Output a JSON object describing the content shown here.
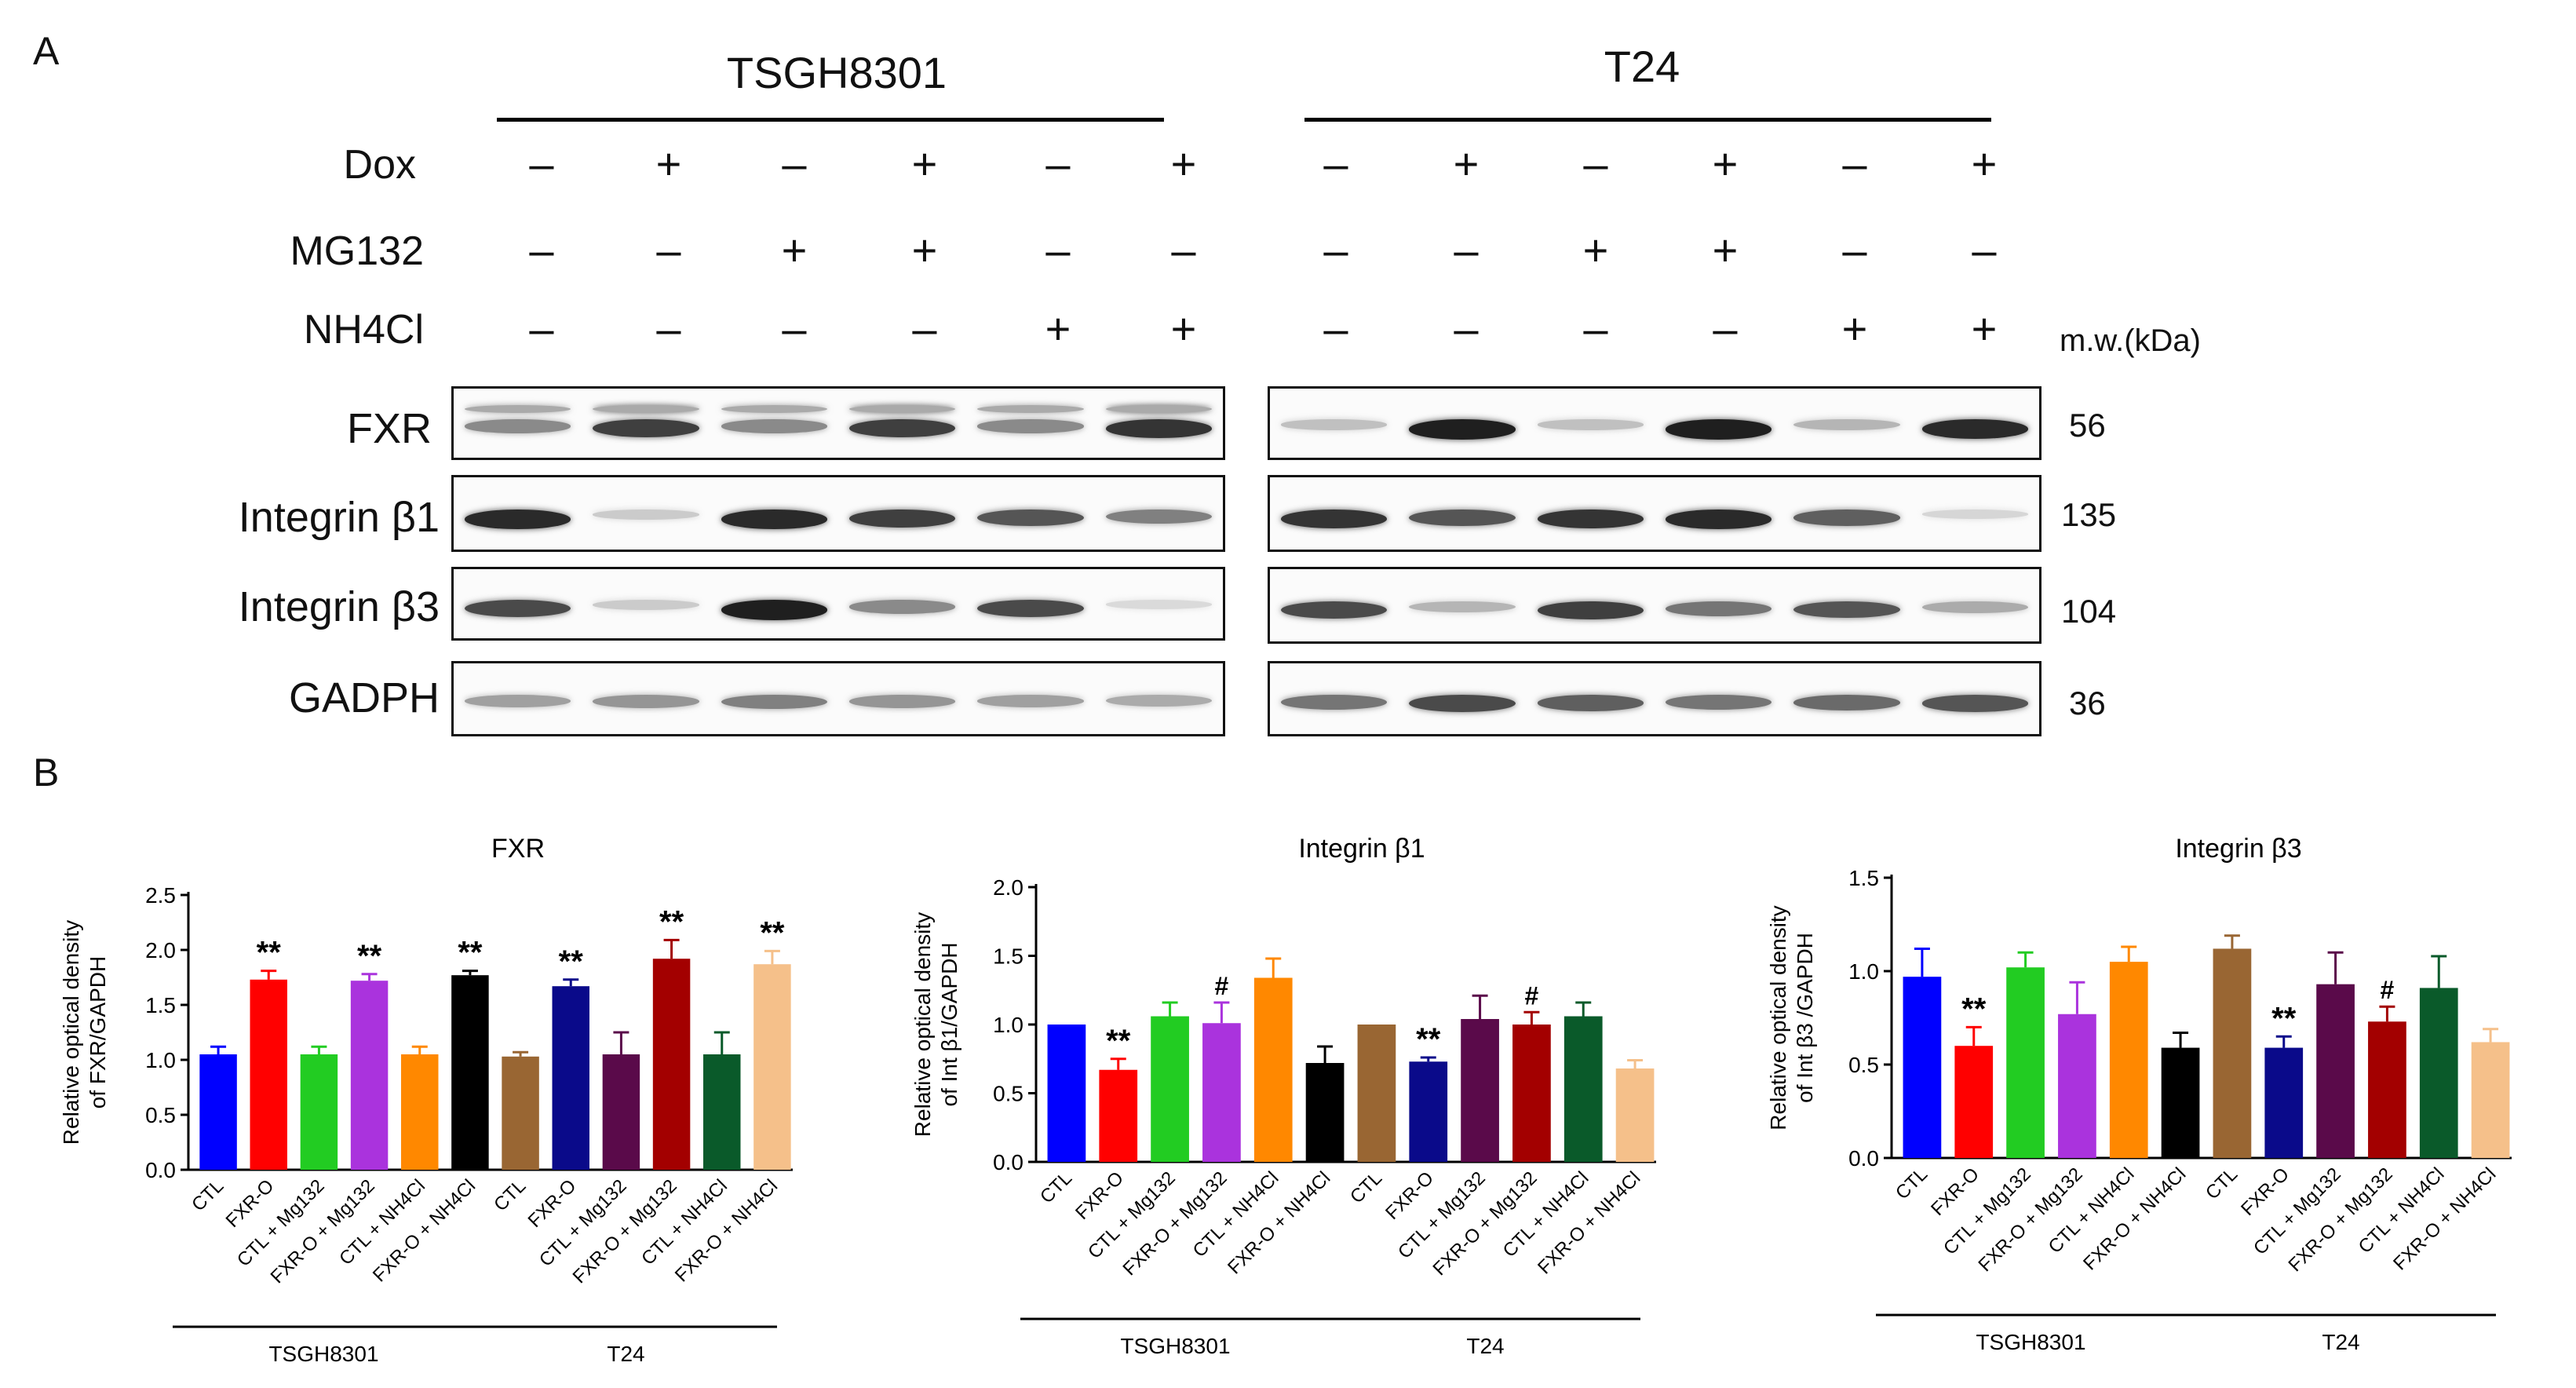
{
  "panelA": {
    "letter": "A",
    "cell_lines": [
      "TSGH8301",
      "T24"
    ],
    "treatments": [
      {
        "label": "Dox",
        "signs": [
          "–",
          "+",
          "–",
          "+",
          "–",
          "+"
        ]
      },
      {
        "label": "MG132",
        "signs": [
          "–",
          "–",
          "+",
          "+",
          "–",
          "–"
        ]
      },
      {
        "label": "NH4Cl",
        "signs": [
          "–",
          "–",
          "–",
          "–",
          "+",
          "+"
        ]
      }
    ],
    "mw_header": "m.w.(kDa)",
    "blots": [
      {
        "label": "FXR",
        "mw": "56"
      },
      {
        "label": "Integrin β1",
        "mw": "135"
      },
      {
        "label": "Integrin β3",
        "mw": "104"
      },
      {
        "label": "GADPH",
        "mw": "36"
      }
    ],
    "band_intensity": {
      "TSGH8301": [
        [
          0.45,
          0.8,
          0.45,
          0.8,
          0.45,
          0.85
        ],
        [
          0.9,
          0.15,
          0.9,
          0.8,
          0.7,
          0.5
        ],
        [
          0.75,
          0.15,
          0.95,
          0.45,
          0.75,
          0.08
        ],
        [
          0.35,
          0.4,
          0.5,
          0.4,
          0.35,
          0.3
        ]
      ],
      "T24": [
        [
          0.2,
          0.95,
          0.2,
          0.95,
          0.25,
          0.9
        ],
        [
          0.85,
          0.7,
          0.85,
          0.9,
          0.65,
          0.1
        ],
        [
          0.75,
          0.25,
          0.8,
          0.55,
          0.7,
          0.3
        ],
        [
          0.55,
          0.75,
          0.65,
          0.55,
          0.6,
          0.7
        ]
      ]
    }
  },
  "panelB": {
    "letter": "B",
    "colors": [
      "#0000ff",
      "#ff0000",
      "#22cc22",
      "#aa33dd",
      "#ff8800",
      "#000000",
      "#996633",
      "#0a0a8a",
      "#5a0a4a",
      "#a30000",
      "#0a5a2a",
      "#f5c08a"
    ],
    "chart_data": [
      {
        "type": "bar",
        "title": "FXR",
        "ylabel": "Relative optical density\nof FXR/GAPDH",
        "ylim": [
          0,
          2.5
        ],
        "yticks": [
          "0.0",
          "0.5",
          "1.0",
          "1.5",
          "2.0",
          "2.5"
        ],
        "categories": [
          "CTL",
          "FXR-O",
          "CTL + Mg132",
          "FXR-O + Mg132",
          "CTL + NH4Cl",
          "FXR-O + NH4Cl",
          "CTL",
          "FXR-O",
          "CTL + Mg132",
          "FXR-O + Mg132",
          "CTL + NH4Cl",
          "FXR-O + NH4Cl"
        ],
        "values": [
          1.05,
          1.73,
          1.05,
          1.72,
          1.05,
          1.77,
          1.03,
          1.67,
          1.05,
          1.92,
          1.05,
          1.87
        ],
        "errors": [
          0.07,
          0.08,
          0.07,
          0.06,
          0.07,
          0.04,
          0.04,
          0.06,
          0.2,
          0.17,
          0.2,
          0.12
        ],
        "annotations": [
          "",
          "**",
          "",
          "**",
          "",
          "**",
          "",
          "**",
          "",
          "**",
          "",
          "**"
        ],
        "groups": [
          "TSGH8301",
          "T24"
        ]
      },
      {
        "type": "bar",
        "title": "Integrin β1",
        "ylabel": "Relative optical density\nof Int β1/GAPDH",
        "ylim": [
          0,
          2.0
        ],
        "yticks": [
          "0.0",
          "0.5",
          "1.0",
          "1.5",
          "2.0"
        ],
        "categories": [
          "CTL",
          "FXR-O",
          "CTL + Mg132",
          "FXR-O + Mg132",
          "CTL + NH4Cl",
          "FXR-O + NH4Cl",
          "CTL",
          "FXR-O",
          "CTL + Mg132",
          "FXR-O + Mg132",
          "CTL + NH4Cl",
          "FXR-O + NH4Cl"
        ],
        "values": [
          1.0,
          0.67,
          1.06,
          1.01,
          1.34,
          0.72,
          1.0,
          0.73,
          1.04,
          1.0,
          1.06,
          0.68
        ],
        "errors": [
          0.0,
          0.08,
          0.1,
          0.15,
          0.14,
          0.12,
          0.0,
          0.03,
          0.17,
          0.09,
          0.1,
          0.06
        ],
        "annotations": [
          "",
          "**",
          "",
          "#",
          "",
          "",
          "",
          "**",
          "",
          "#",
          "",
          ""
        ],
        "groups": [
          "TSGH8301",
          "T24"
        ]
      },
      {
        "type": "bar",
        "title": "Integrin β3",
        "ylabel": "Relative optical density\nof Int β3 /GAPDH",
        "ylim": [
          0,
          1.5
        ],
        "yticks": [
          "0.0",
          "0.5",
          "1.0",
          "1.5"
        ],
        "categories": [
          "CTL",
          "FXR-O",
          "CTL + Mg132",
          "FXR-O + Mg132",
          "CTL + NH4Cl",
          "FXR-O + NH4Cl",
          "CTL",
          "FXR-O",
          "CTL + Mg132",
          "FXR-O + Mg132",
          "CTL + NH4Cl",
          "FXR-O + NH4Cl"
        ],
        "values": [
          0.97,
          0.6,
          1.02,
          0.77,
          1.05,
          0.59,
          1.12,
          0.59,
          0.93,
          0.73,
          0.91,
          0.62
        ],
        "errors": [
          0.15,
          0.1,
          0.08,
          0.17,
          0.08,
          0.08,
          0.07,
          0.06,
          0.17,
          0.08,
          0.17,
          0.07
        ],
        "annotations": [
          "",
          "**",
          "",
          "",
          "",
          "",
          "",
          "**",
          "",
          "#",
          "",
          ""
        ],
        "groups": [
          "TSGH8301",
          "T24"
        ]
      }
    ]
  }
}
